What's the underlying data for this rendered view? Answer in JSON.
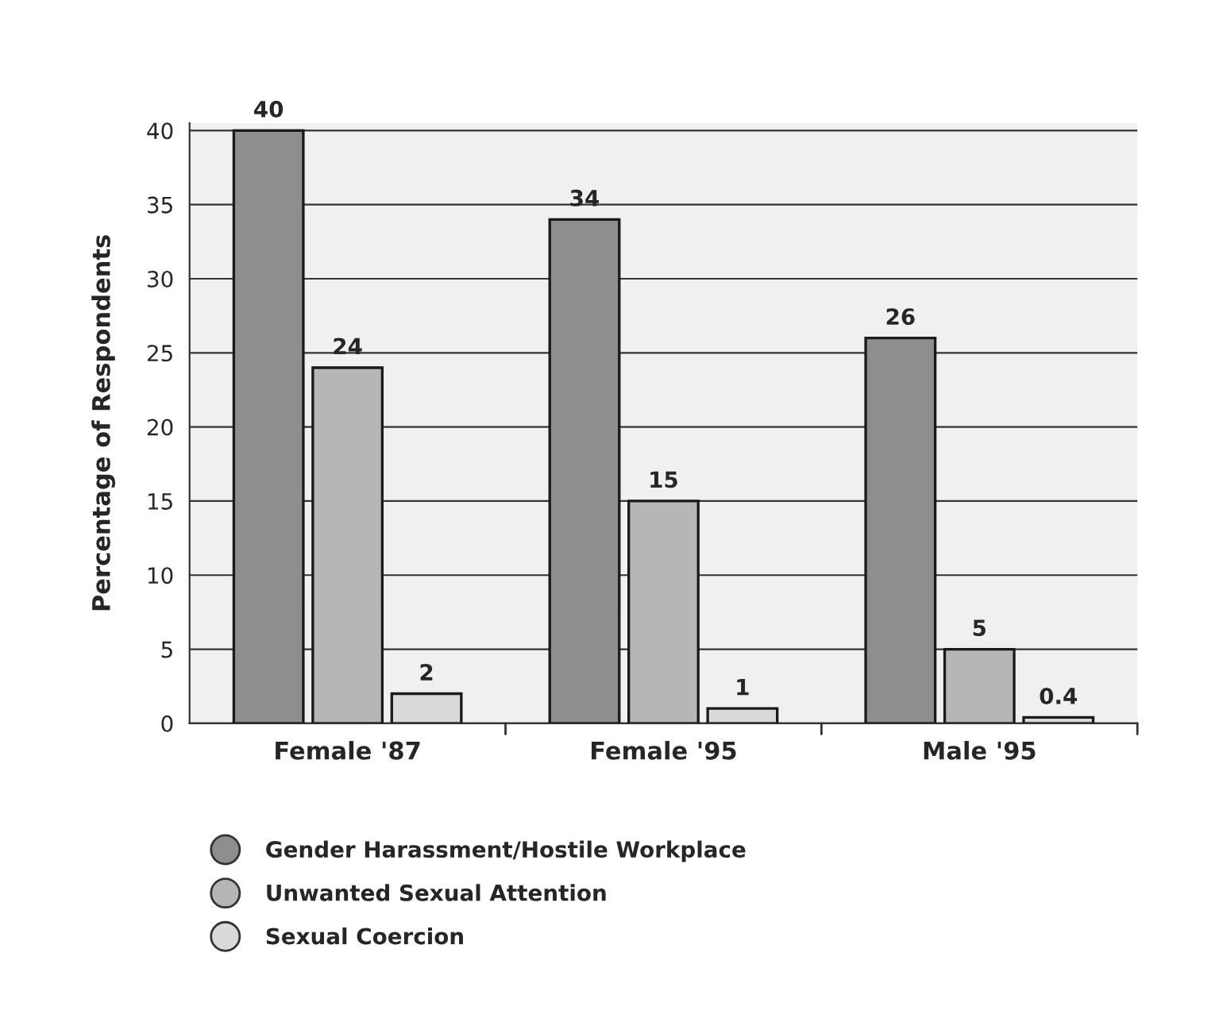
{
  "chart_data": {
    "type": "bar",
    "ylabel": "Percentage of Respondents",
    "categories": [
      "Female '87",
      "Female '95",
      "Male '95"
    ],
    "series": [
      {
        "name": "Gender Harassment/Hostile Workplace",
        "color": "#8e8e90",
        "values": [
          40,
          34,
          26
        ]
      },
      {
        "name": "Unwanted Sexual Attention",
        "color": "#b6b6b8",
        "values": [
          24,
          15,
          5
        ]
      },
      {
        "name": "Sexual Coercion",
        "color": "#d9d9db",
        "values": [
          2,
          1,
          0.4
        ]
      }
    ],
    "ylim": [
      0,
      40.5
    ],
    "yticks": [
      0,
      5,
      10,
      15,
      20,
      25,
      30,
      35,
      40
    ],
    "grid": "y",
    "legend": "bottom",
    "marker": "circle",
    "data_labels": true
  }
}
